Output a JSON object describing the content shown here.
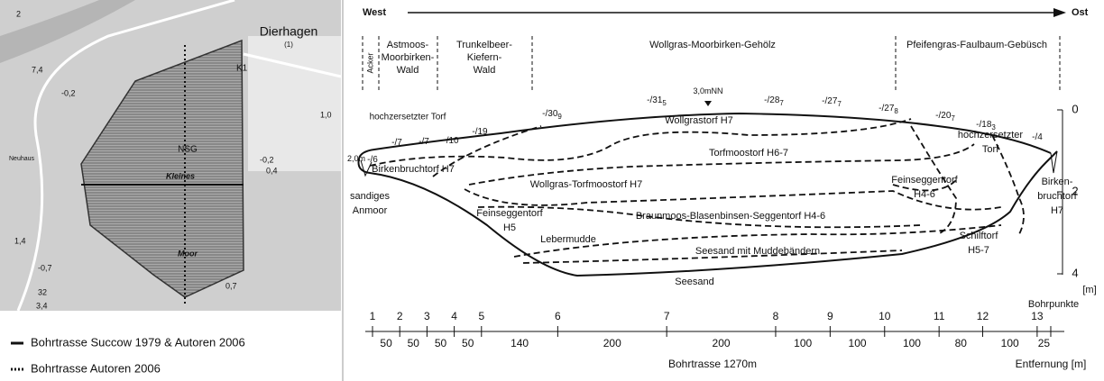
{
  "map": {
    "place": "Dierhagen",
    "place_note": "(1)",
    "reserve": "NSG",
    "moor_name_1": "Kleines",
    "moor_name_2": "Moor",
    "road": "K1",
    "village": "Neuhaus",
    "elevations": [
      "2",
      "7,4",
      "-0,2",
      "1,0",
      "-0,2",
      "0,4",
      "1,4",
      "-0,7",
      "0,7",
      "3,4",
      "32"
    ],
    "legend": [
      "Bohrtrasse Succow 1979 & Autoren 2006",
      "Bohrtrasse Autoren 2006"
    ]
  },
  "profile": {
    "west": "West",
    "east": "Ost",
    "zones": [
      {
        "lines": [
          "Acker"
        ]
      },
      {
        "lines": [
          "Astmoos-",
          "Moorbirken-",
          "Wald"
        ]
      },
      {
        "lines": [
          "Trunkelbeer-",
          "Kiefern-",
          "Wald"
        ]
      },
      {
        "lines": [
          "Wollgras-Moorbirken-Gehölz"
        ]
      },
      {
        "lines": [
          "Pfeifengras-Faulbaum-Gebüsch"
        ]
      }
    ],
    "surface_labels": [
      {
        "text": "2,0m"
      },
      {
        "text": "-/6"
      },
      {
        "text": "-/7"
      },
      {
        "text": "-/7"
      },
      {
        "text": "-/10"
      },
      {
        "text": "-/19"
      },
      {
        "text": "-/30",
        "sub": "9"
      },
      {
        "text": "-/31",
        "sub": "5"
      },
      {
        "text": "3,0mNN"
      },
      {
        "text": "-/28",
        "sub": "7"
      },
      {
        "text": "-/27",
        "sub": "7"
      },
      {
        "text": "-/27",
        "sub": "8"
      },
      {
        "text": "-/20",
        "sub": "7"
      },
      {
        "text": "-/18",
        "sub": "3"
      },
      {
        "text": "-/4"
      }
    ],
    "layers": [
      {
        "lines": [
          "hochzersetzter Torf"
        ]
      },
      {
        "lines": [
          "Birkenbruchtorf H7"
        ]
      },
      {
        "lines": [
          "sandiges",
          "Anmoor"
        ]
      },
      {
        "lines": [
          "Wollgrastorf H7"
        ]
      },
      {
        "lines": [
          "Torfmoostorf H6-7"
        ]
      },
      {
        "lines": [
          "Wollgras-Torfmoostorf H7"
        ]
      },
      {
        "lines": [
          "Braunmoos-Blasenbinsen-Seggentorf H4-6"
        ]
      },
      {
        "lines": [
          "Feinseggentorf",
          "H5"
        ]
      },
      {
        "lines": [
          "Lebermudde"
        ]
      },
      {
        "lines": [
          "Seesand mit Muddebändern"
        ]
      },
      {
        "lines": [
          "Seesand"
        ]
      },
      {
        "lines": [
          "Feinseggentorf",
          "H4-6"
        ]
      },
      {
        "lines": [
          "hochzersetzter",
          "Torf"
        ]
      },
      {
        "lines": [
          "Birken-",
          "bruchtorf",
          "H7"
        ]
      },
      {
        "lines": [
          "Schilftorf",
          "H5-7"
        ]
      }
    ],
    "depth_ticks": [
      0,
      2,
      4
    ],
    "depth_unit": "[m]",
    "points_title": "Bohrpunkte",
    "points": [
      1,
      2,
      3,
      4,
      5,
      6,
      7,
      8,
      9,
      10,
      11,
      12,
      13
    ],
    "distances": [
      50,
      50,
      50,
      50,
      140,
      200,
      200,
      100,
      100,
      100,
      80,
      100,
      25
    ],
    "track": "Bohrtrasse 1270m",
    "distance_title": "Entfernung [m]"
  }
}
